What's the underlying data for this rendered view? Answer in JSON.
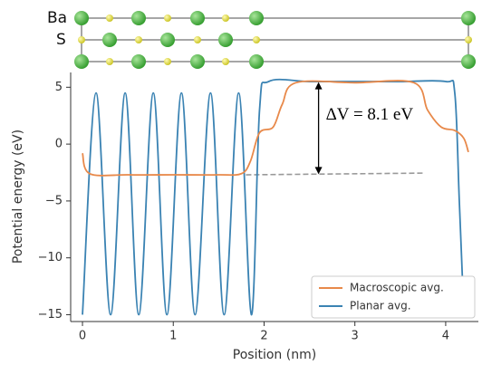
{
  "chart_data": {
    "type": "line",
    "structure_labels": [
      "Ba",
      "S"
    ],
    "x_label": "Position (nm)",
    "y_label": "Potential energy (eV)",
    "xlim": [
      -0.13,
      4.36
    ],
    "ylim": [
      -15.6,
      6.3
    ],
    "xticks": [
      0,
      1,
      2,
      3,
      4
    ],
    "yticks": [
      {
        "value": -15,
        "label": "−15"
      },
      {
        "value": -10,
        "label": "−10"
      },
      {
        "value": -5,
        "label": "−5"
      },
      0,
      5
    ],
    "legend": "lower right",
    "series": [
      {
        "name": "Macroscopic avg.",
        "color": "#e8894a",
        "x": [
          0,
          0.08,
          0.5,
          1.0,
          1.5,
          1.75,
          1.85,
          1.95,
          2.1,
          2.2,
          2.35,
          3.0,
          3.65,
          3.8,
          3.95,
          4.1,
          4.2,
          4.25
        ],
        "values": [
          -0.8,
          -2.6,
          -2.7,
          -2.7,
          -2.7,
          -2.6,
          -1.5,
          1.0,
          1.5,
          3.5,
          5.4,
          5.4,
          5.4,
          3.0,
          1.5,
          1.2,
          0.5,
          -0.7
        ]
      },
      {
        "name": "Planar avg.",
        "color": "#3b83b3",
        "x": [
          0,
          0.15,
          0.31,
          0.47,
          0.62,
          0.78,
          0.93,
          1.09,
          1.24,
          1.41,
          1.56,
          1.72,
          1.86,
          1.95,
          2.05,
          2.5,
          3.0,
          3.5,
          4.0,
          4.1,
          4.15,
          4.2
        ],
        "values": [
          -15,
          4.5,
          -15,
          4.5,
          -15,
          4.5,
          -15,
          4.5,
          -15,
          4.5,
          -15,
          4.5,
          -15,
          3,
          5.5,
          5.5,
          5.5,
          5.5,
          5.5,
          4.5,
          -5,
          -15
        ]
      }
    ],
    "reference_line": {
      "color": "#999999",
      "x": [
        1.8,
        3.75
      ],
      "values": [
        -2.7,
        -2.55
      ]
    },
    "annotation": {
      "text": "ΔV = 8.1 eV",
      "x": 2.6,
      "values": [
        5.45,
        -2.65
      ]
    }
  }
}
